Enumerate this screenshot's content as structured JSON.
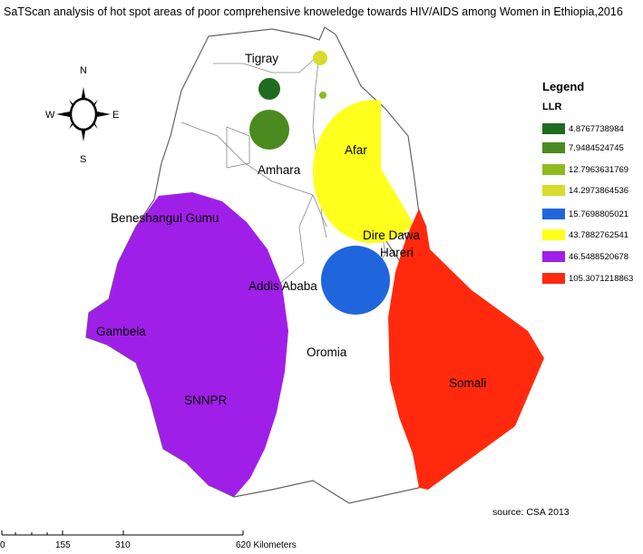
{
  "title": "SaTScan analysis of hot spot areas of poor comprehensive knoweledge  towards HIV/AIDS among Women in Ethiopia,2016",
  "compass": {
    "n": "N",
    "s": "S",
    "e": "E",
    "w": "W",
    "icon": "north-arrow-compass-icon"
  },
  "regions": {
    "tigray": "Tigray",
    "amhara": "Amhara",
    "afar": "Afar",
    "beneshangul": "Beneshangul Gumu",
    "dire_dawa": "Dire Dawa",
    "hareri": "Hareri",
    "addis": "Addis Ababa",
    "gambela": "Gambela",
    "oromia": "Oromia",
    "snnpr": "SNNPR",
    "somali": "Somali"
  },
  "legend": {
    "title": "Legend",
    "subtitle": "LLR",
    "items": [
      {
        "label": "4.8767738984",
        "color": "#1f6b1f"
      },
      {
        "label": "7.9484524745",
        "color": "#4a8a1e"
      },
      {
        "label": "12.7963631769",
        "color": "#8fbb1f"
      },
      {
        "label": "14.2973864536",
        "color": "#d6dd2a"
      },
      {
        "label": "15.7698805021",
        "color": "#1f66dd"
      },
      {
        "label": "43.7882762541",
        "color": "#ffff1e"
      },
      {
        "label": "46.5488520678",
        "color": "#a01fe8"
      },
      {
        "label": "105.3071218863",
        "color": "#ff2a0d"
      }
    ]
  },
  "source": "source: CSA 2013",
  "scale": {
    "ticks": [
      "0",
      "155",
      "310",
      "620 Kilometers"
    ]
  }
}
